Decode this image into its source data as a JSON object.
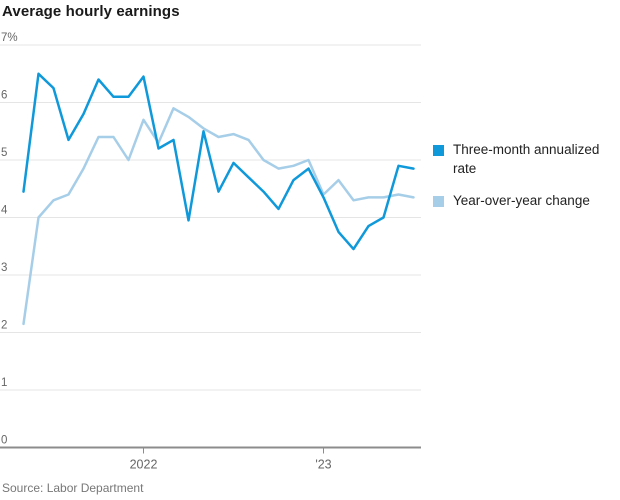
{
  "title": "Average hourly earnings",
  "source": "Source: Labor Department",
  "colors": {
    "series_dark_blue": "#0f99da",
    "series_light_blue": "#a6cee8",
    "gridline": "#e5e5e5",
    "baseline": "#8c8c8c",
    "axis_label": "#666666",
    "title_text": "#1a1a1a",
    "legend_text": "#222222",
    "source_text": "#777777"
  },
  "chart_data": {
    "type": "line",
    "title": "Average hourly earnings",
    "xlabel": "",
    "ylabel": "",
    "ylim": [
      0,
      7
    ],
    "grid": true,
    "legend_position": "right",
    "x": [
      "May 2021",
      "Jun 2021",
      "Jul 2021",
      "Aug 2021",
      "Sep 2021",
      "Oct 2021",
      "Nov 2021",
      "Dec 2021",
      "Jan 2022",
      "Feb 2022",
      "Mar 2022",
      "Apr 2022",
      "May 2022",
      "Jun 2022",
      "Jul 2022",
      "Aug 2022",
      "Sep 2022",
      "Oct 2022",
      "Nov 2022",
      "Dec 2022",
      "Jan 2023",
      "Feb 2023",
      "Mar 2023",
      "Apr 2023",
      "May 2023",
      "Jun 2023",
      "Jul 2023"
    ],
    "series": [
      {
        "name": "Three-month annualized rate",
        "color": "#0f99da",
        "values": [
          4.45,
          6.5,
          6.25,
          5.35,
          5.8,
          6.4,
          6.1,
          6.1,
          6.45,
          5.2,
          5.35,
          3.95,
          5.5,
          4.45,
          4.95,
          4.7,
          4.45,
          4.15,
          4.65,
          4.85,
          4.35,
          3.75,
          3.45,
          3.85,
          4.0,
          4.9,
          4.85
        ]
      },
      {
        "name": "Year-over-year change",
        "color": "#a6cee8",
        "values": [
          2.15,
          4.0,
          4.3,
          4.4,
          4.85,
          5.4,
          5.4,
          5.0,
          5.7,
          5.3,
          5.9,
          5.75,
          5.55,
          5.4,
          5.45,
          5.35,
          5.0,
          4.85,
          4.9,
          5.0,
          4.4,
          4.65,
          4.3,
          4.35,
          4.35,
          4.4,
          4.35
        ]
      }
    ],
    "y_ticks": [
      {
        "value": 7,
        "label": "7%"
      },
      {
        "value": 6,
        "label": "6"
      },
      {
        "value": 5,
        "label": "5"
      },
      {
        "value": 4,
        "label": "4"
      },
      {
        "value": 3,
        "label": "3"
      },
      {
        "value": 2,
        "label": "2"
      },
      {
        "value": 1,
        "label": "1"
      },
      {
        "value": 0,
        "label": "0"
      }
    ],
    "x_ticks": [
      {
        "index": 8,
        "label": "2022"
      },
      {
        "index": 20,
        "label": "'23"
      }
    ]
  }
}
